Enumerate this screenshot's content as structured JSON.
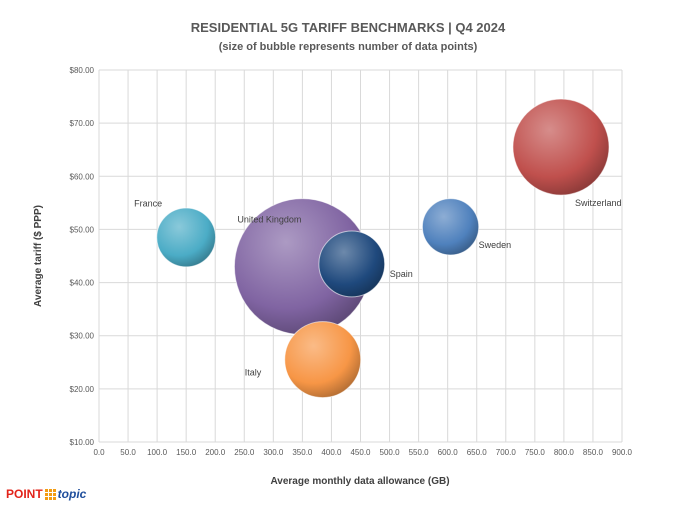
{
  "chart_data": {
    "type": "bubble",
    "title": "RESIDENTIAL 5G TARIFF BENCHMARKS | Q4 2024",
    "subtitle": "(size of bubble represents number of data points)",
    "xlabel": "Average monthly data allowance (GB)",
    "ylabel": "Average tariff ($ PPP)",
    "xlim": [
      0,
      900
    ],
    "ylim": [
      10,
      80
    ],
    "x_ticks": [
      "0.0",
      "50.0",
      "100.0",
      "150.0",
      "200.0",
      "250.0",
      "300.0",
      "350.0",
      "400.0",
      "450.0",
      "500.0",
      "550.0",
      "600.0",
      "650.0",
      "700.0",
      "750.0",
      "800.0",
      "850.0",
      "900.0"
    ],
    "y_ticks": [
      "$10.00",
      "$20.00",
      "$30.00",
      "$40.00",
      "$50.00",
      "$60.00",
      "$70.00",
      "$80.00"
    ],
    "grid": true,
    "points": [
      {
        "name": "United Kingdom",
        "x": 350,
        "y": 43,
        "size": 3.2,
        "color": "#8064a2"
      },
      {
        "name": "Switzerland",
        "x": 795,
        "y": 65.5,
        "size": 1.6,
        "color": "#c0504d"
      },
      {
        "name": "Italy",
        "x": 385,
        "y": 25.5,
        "size": 1.0,
        "color": "#f79646"
      },
      {
        "name": "Spain",
        "x": 435,
        "y": 43.5,
        "size": 0.75,
        "color": "#1f497d"
      },
      {
        "name": "France",
        "x": 150,
        "y": 48.5,
        "size": 0.6,
        "color": "#4bacc6"
      },
      {
        "name": "Sweden",
        "x": 605,
        "y": 50.5,
        "size": 0.55,
        "color": "#4f81bd"
      }
    ]
  },
  "logo": {
    "part1": "POINT",
    "part2": "topic"
  }
}
